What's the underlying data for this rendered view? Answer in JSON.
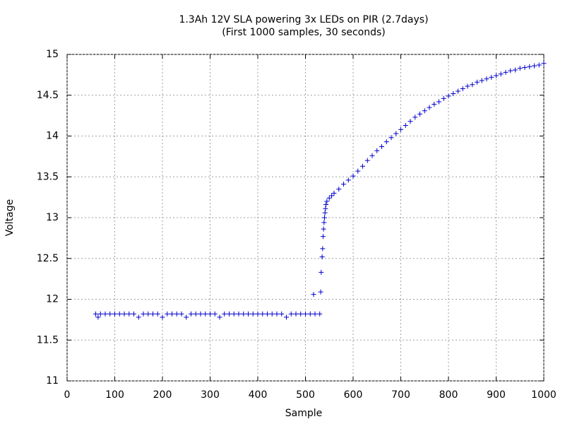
{
  "chart_data": {
    "type": "scatter",
    "title": "1.3Ah 12V SLA powering 3x LEDs on PIR (2.7days)",
    "subtitle": "(First 1000 samples, 30 seconds)",
    "x_label": "Sample",
    "y_label": "Voltage",
    "xlim": [
      0,
      1000
    ],
    "xticks": [
      0,
      100,
      200,
      300,
      400,
      500,
      600,
      700,
      800,
      900,
      1000
    ],
    "ylim": [
      11,
      15
    ],
    "yticks": [
      11,
      11.5,
      12,
      12.5,
      13,
      13.5,
      14,
      14.5,
      15
    ],
    "grid": true,
    "series": [
      {
        "color": "#0000cc",
        "x": [
          60,
          65,
          70,
          80,
          90,
          100,
          110,
          120,
          130,
          140,
          150,
          160,
          170,
          180,
          190,
          200,
          210,
          220,
          230,
          240,
          250,
          260,
          270,
          280,
          290,
          300,
          310,
          320,
          330,
          340,
          350,
          360,
          370,
          380,
          390,
          400,
          410,
          420,
          430,
          440,
          450,
          460,
          470,
          480,
          490,
          500,
          510,
          517,
          520,
          530,
          532,
          533,
          535,
          536,
          537,
          538,
          539,
          540,
          541,
          542,
          543,
          545,
          550,
          555,
          560,
          570,
          580,
          590,
          600,
          610,
          620,
          630,
          640,
          650,
          660,
          670,
          680,
          690,
          700,
          710,
          720,
          730,
          740,
          750,
          760,
          770,
          780,
          790,
          800,
          810,
          820,
          830,
          840,
          850,
          860,
          870,
          880,
          890,
          900,
          910,
          920,
          930,
          940,
          950,
          960,
          970,
          980,
          990,
          1000
        ],
        "values": [
          11.82,
          11.78,
          11.82,
          11.82,
          11.82,
          11.82,
          11.82,
          11.82,
          11.82,
          11.82,
          11.78,
          11.82,
          11.82,
          11.82,
          11.82,
          11.78,
          11.82,
          11.82,
          11.82,
          11.82,
          11.78,
          11.82,
          11.82,
          11.82,
          11.82,
          11.82,
          11.82,
          11.78,
          11.82,
          11.82,
          11.82,
          11.82,
          11.82,
          11.82,
          11.82,
          11.82,
          11.82,
          11.82,
          11.82,
          11.82,
          11.82,
          11.78,
          11.82,
          11.82,
          11.82,
          11.82,
          11.82,
          12.06,
          11.82,
          11.82,
          12.09,
          12.33,
          12.52,
          12.62,
          12.77,
          12.86,
          12.94,
          13.0,
          13.06,
          13.11,
          13.16,
          13.2,
          13.24,
          13.27,
          13.3,
          13.35,
          13.41,
          13.46,
          13.51,
          13.57,
          13.63,
          13.7,
          13.76,
          13.82,
          13.87,
          13.93,
          13.98,
          14.03,
          14.08,
          14.13,
          14.18,
          14.23,
          14.27,
          14.31,
          14.35,
          14.39,
          14.42,
          14.46,
          14.49,
          14.52,
          14.55,
          14.58,
          14.61,
          14.63,
          14.66,
          14.68,
          14.7,
          14.72,
          14.74,
          14.76,
          14.78,
          14.8,
          14.81,
          14.83,
          14.84,
          14.85,
          14.86,
          14.87,
          14.89
        ]
      }
    ]
  }
}
